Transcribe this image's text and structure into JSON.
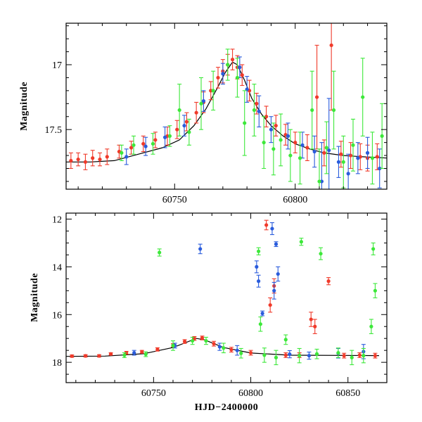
{
  "chart_data": [
    {
      "type": "scatter",
      "panel": "top",
      "xlabel": "",
      "ylabel": "Magnitude",
      "xlim": [
        60705,
        60838
      ],
      "ylim": [
        17.96,
        16.68
      ],
      "y_inverted": true,
      "x_ticks": [
        60750,
        60800
      ],
      "y_ticks": [
        17,
        17.5
      ],
      "x_tick_labels": [
        "60750",
        "60800"
      ],
      "y_tick_labels": [
        "17",
        "17.5"
      ],
      "model_curve": {
        "x": [
          60705,
          60715,
          60725,
          60735,
          60745,
          60752,
          60758,
          60763,
          60768,
          60771,
          60774,
          60776,
          60779,
          60782,
          60786,
          60790,
          60795,
          60800,
          60806,
          60812,
          60820,
          60828,
          60838
        ],
        "y": [
          17.75,
          17.75,
          17.74,
          17.69,
          17.64,
          17.58,
          17.47,
          17.34,
          17.17,
          17.06,
          16.98,
          17.0,
          17.12,
          17.26,
          17.38,
          17.47,
          17.55,
          17.61,
          17.65,
          17.68,
          17.7,
          17.71,
          17.72
        ]
      },
      "series": [
        {
          "name": "",
          "color": "#f03a2a",
          "x": [
            60707,
            60710,
            60713,
            60716,
            60719,
            60722,
            60727,
            60732,
            60737,
            60742,
            60747,
            60751,
            60755,
            60759,
            60762,
            60765,
            60768,
            60770,
            60772,
            60774,
            60776,
            60778,
            60781,
            60784,
            60788,
            60792,
            60796,
            60800,
            60805,
            60809,
            60812,
            60815,
            60819,
            60823,
            60827,
            60830,
            60834
          ],
          "y": [
            17.74,
            17.73,
            17.75,
            17.72,
            17.73,
            17.71,
            17.67,
            17.64,
            17.61,
            17.58,
            17.55,
            17.5,
            17.44,
            17.37,
            17.29,
            17.2,
            17.1,
            17.05,
            17.0,
            16.96,
            17.02,
            17.08,
            17.2,
            17.3,
            17.4,
            17.47,
            17.54,
            17.6,
            17.64,
            17.25,
            17.68,
            16.85,
            17.69,
            17.7,
            17.71,
            17.72,
            17.71
          ],
          "err": [
            0.06,
            0.05,
            0.06,
            0.06,
            0.05,
            0.06,
            0.05,
            0.05,
            0.06,
            0.06,
            0.07,
            0.07,
            0.07,
            0.08,
            0.08,
            0.07,
            0.08,
            0.09,
            0.08,
            0.08,
            0.09,
            0.08,
            0.08,
            0.08,
            0.08,
            0.08,
            0.08,
            0.08,
            0.1,
            0.4,
            0.1,
            0.5,
            0.1,
            0.1,
            0.1,
            0.1,
            0.1
          ]
        },
        {
          "name": "",
          "color": "#2a5cdc",
          "x": [
            60730,
            60738,
            60746,
            60754,
            60762,
            60770,
            60777,
            60780,
            60785,
            60790,
            60797,
            60803,
            60808,
            60811,
            60814,
            60818,
            60822,
            60826,
            60830,
            60835
          ],
          "y": [
            17.71,
            17.63,
            17.56,
            17.47,
            17.28,
            17.07,
            17.02,
            17.19,
            17.36,
            17.5,
            17.55,
            17.62,
            17.67,
            17.9,
            17.66,
            17.75,
            17.84,
            17.72,
            17.68,
            17.8
          ],
          "err": [
            0.06,
            0.07,
            0.08,
            0.08,
            0.08,
            0.08,
            0.08,
            0.1,
            0.12,
            0.1,
            0.1,
            0.1,
            0.12,
            0.3,
            0.4,
            0.12,
            0.15,
            0.12,
            0.12,
            0.15
          ]
        },
        {
          "name": "",
          "color": "#3de83a",
          "x": [
            60728,
            60733,
            60741,
            60748,
            60752,
            60756,
            60761,
            60766,
            60772,
            60776,
            60779,
            60783,
            60787,
            60791,
            60794,
            60798,
            60802,
            60807,
            60810,
            60813,
            60816,
            60820,
            60824,
            60828,
            60832,
            60836
          ],
          "y": [
            17.68,
            17.62,
            17.61,
            17.55,
            17.35,
            17.52,
            17.3,
            17.2,
            17.0,
            17.1,
            17.45,
            17.35,
            17.6,
            17.65,
            17.58,
            17.7,
            17.72,
            17.35,
            17.9,
            17.64,
            17.35,
            17.75,
            17.62,
            17.25,
            17.72,
            17.55
          ],
          "err": [
            0.06,
            0.07,
            0.08,
            0.08,
            0.2,
            0.1,
            0.2,
            0.15,
            0.12,
            0.15,
            0.25,
            0.2,
            0.2,
            0.2,
            0.2,
            0.2,
            0.2,
            0.3,
            0.25,
            0.2,
            0.3,
            0.2,
            0.2,
            0.3,
            0.2,
            0.25
          ]
        }
      ]
    },
    {
      "type": "scatter",
      "panel": "bottom",
      "xlabel": "HJD−2400000",
      "ylabel": "Magnitude",
      "xlim": [
        60705,
        60870
      ],
      "ylim": [
        18.85,
        11.75
      ],
      "y_inverted": true,
      "x_ticks": [
        60750,
        60800,
        60850
      ],
      "y_ticks": [
        12,
        14,
        16,
        18
      ],
      "x_tick_labels": [
        "60750",
        "60800",
        "60850"
      ],
      "y_tick_labels": [
        "12",
        "14",
        "16",
        "18"
      ],
      "model_curve": {
        "x": [
          60705,
          60725,
          60745,
          60760,
          60772,
          60776,
          60786,
          60800,
          60820,
          60866
        ],
        "y": [
          17.75,
          17.74,
          17.64,
          17.38,
          17.0,
          17.05,
          17.38,
          17.61,
          17.7,
          17.72
        ]
      },
      "series": [
        {
          "name": "",
          "color": "#f03a2a",
          "x": [
            60708,
            60715,
            60722,
            60728,
            60736,
            60744,
            60752,
            60760,
            60766,
            60771,
            60775,
            60781,
            60790,
            60800,
            60808,
            60810,
            60812,
            60818,
            60825,
            60831,
            60833,
            60840,
            60848,
            60856,
            60864
          ],
          "y": [
            17.74,
            17.73,
            17.73,
            17.65,
            17.6,
            17.56,
            17.46,
            17.29,
            17.13,
            17.0,
            16.98,
            17.22,
            17.47,
            17.6,
            12.25,
            15.6,
            14.8,
            17.7,
            17.7,
            16.2,
            16.5,
            14.6,
            17.72,
            17.7,
            17.72
          ],
          "err": [
            0.05,
            0.05,
            0.05,
            0.05,
            0.06,
            0.06,
            0.07,
            0.07,
            0.08,
            0.08,
            0.08,
            0.1,
            0.1,
            0.1,
            0.2,
            0.3,
            0.3,
            0.1,
            0.1,
            0.3,
            0.3,
            0.15,
            0.1,
            0.1,
            0.1
          ]
        },
        {
          "name": "",
          "color": "#2a5cdc",
          "x": [
            60740,
            60761,
            60774,
            60784,
            60793,
            60803,
            60804,
            60806,
            60811,
            60812,
            60813,
            60814,
            60820,
            60830,
            60845,
            60858
          ],
          "y": [
            17.6,
            17.3,
            13.25,
            17.35,
            17.5,
            14.0,
            14.6,
            15.95,
            12.4,
            15.0,
            13.05,
            14.3,
            17.66,
            17.72,
            17.62,
            17.55
          ],
          "err": [
            0.1,
            0.1,
            0.2,
            0.15,
            0.2,
            0.25,
            0.25,
            0.1,
            0.25,
            0.35,
            0.1,
            0.3,
            0.15,
            0.15,
            0.2,
            0.3
          ]
        },
        {
          "name": "",
          "color": "#3de83a",
          "x": [
            60735,
            60746,
            60753,
            60760,
            60770,
            60777,
            60786,
            60795,
            60804,
            60805,
            60807,
            60813,
            60818,
            60825,
            60826,
            60834,
            60836,
            60845,
            60852,
            60858,
            60862,
            60863,
            60864
          ],
          "y": [
            17.7,
            17.66,
            13.4,
            17.3,
            17.1,
            17.1,
            17.4,
            17.62,
            13.35,
            16.4,
            17.7,
            17.8,
            17.05,
            17.72,
            12.95,
            17.65,
            13.45,
            17.6,
            17.8,
            17.72,
            16.5,
            13.25,
            15.0
          ],
          "err": [
            0.1,
            0.1,
            0.15,
            0.2,
            0.15,
            0.15,
            0.2,
            0.2,
            0.15,
            0.3,
            0.3,
            0.3,
            0.2,
            0.3,
            0.15,
            0.2,
            0.25,
            0.2,
            0.3,
            0.3,
            0.3,
            0.25,
            0.3
          ]
        }
      ]
    }
  ]
}
